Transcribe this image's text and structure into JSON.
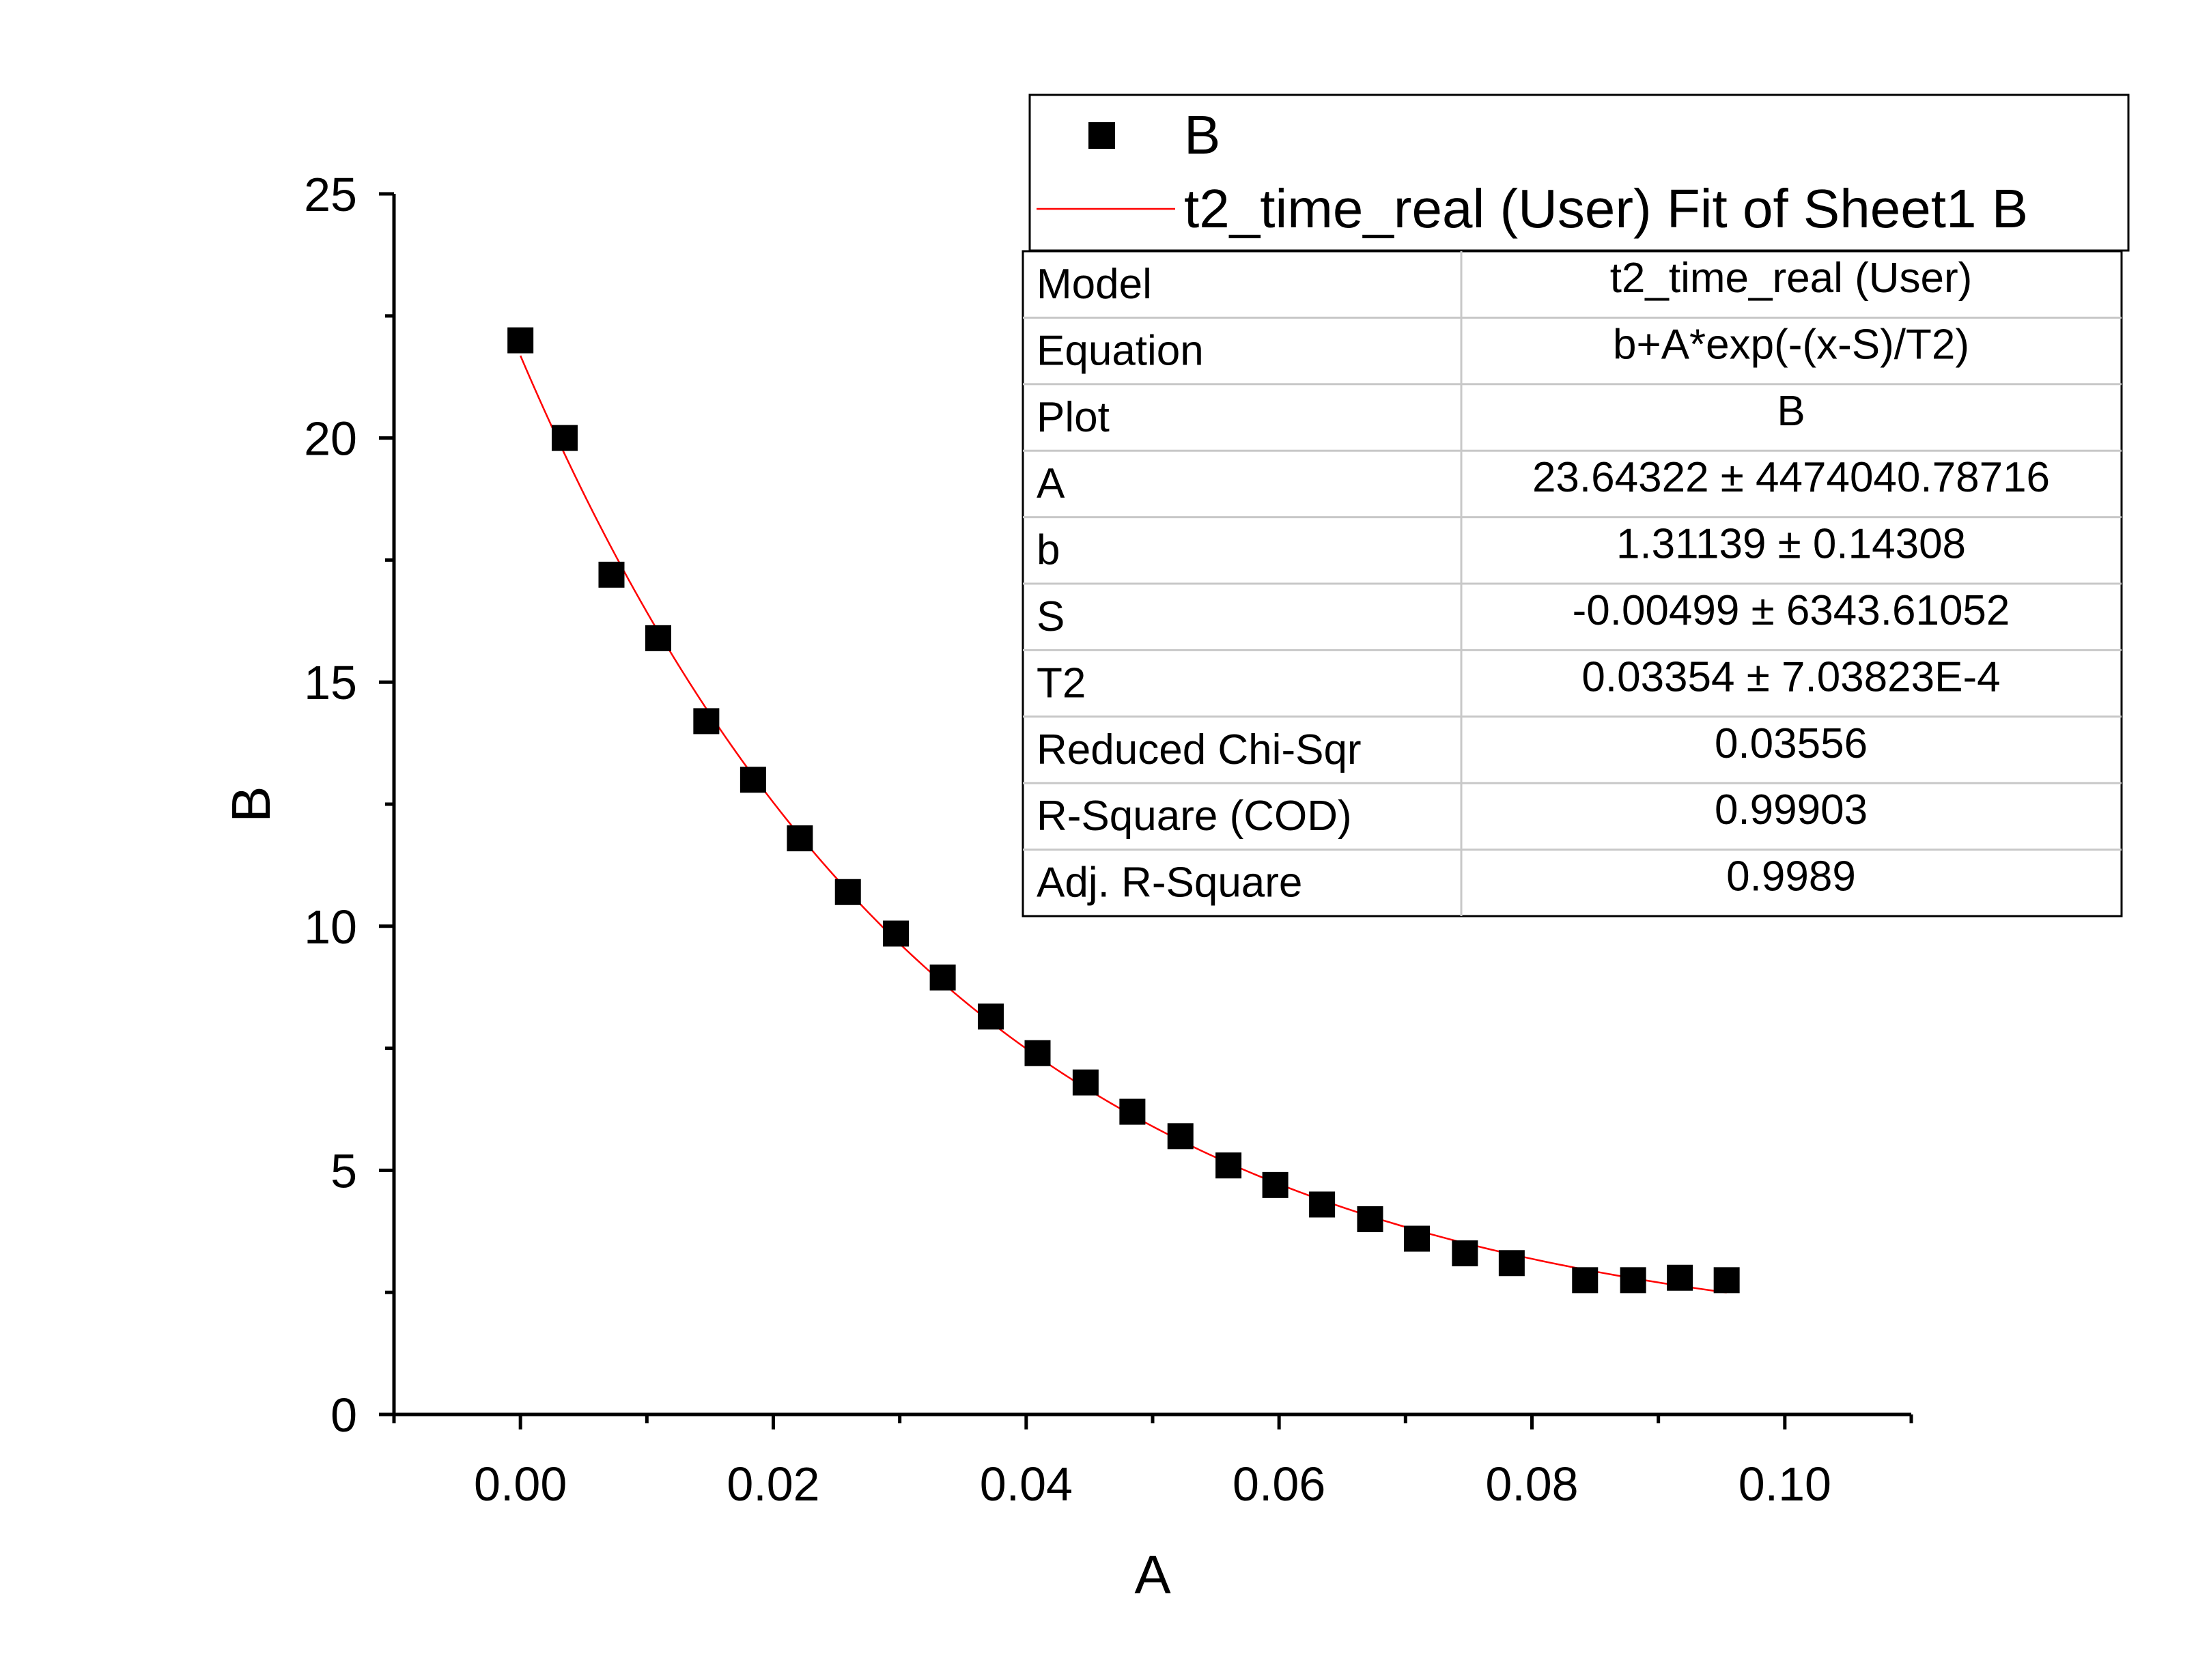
{
  "chart_data": {
    "type": "scatter",
    "xlabel": "A",
    "ylabel": "B",
    "xlim": [
      -0.01,
      0.11
    ],
    "ylim": [
      0,
      25
    ],
    "x_ticks": [
      {
        "value": 0.0,
        "label": "0.00"
      },
      {
        "value": 0.02,
        "label": "0.02"
      },
      {
        "value": 0.04,
        "label": "0.04"
      },
      {
        "value": 0.06,
        "label": "0.06"
      },
      {
        "value": 0.08,
        "label": "0.08"
      },
      {
        "value": 0.1,
        "label": "0.10"
      }
    ],
    "y_ticks": [
      {
        "value": 0,
        "label": "0"
      },
      {
        "value": 5,
        "label": "5"
      },
      {
        "value": 10,
        "label": "10"
      },
      {
        "value": 15,
        "label": "15"
      },
      {
        "value": 20,
        "label": "20"
      },
      {
        "value": 25,
        "label": "25"
      }
    ],
    "grid": false,
    "legend_position": "top-right",
    "series": [
      {
        "name": "B",
        "kind": "scatter",
        "marker": "square",
        "color": "#000000",
        "x": [
          0.0,
          0.0035,
          0.0072,
          0.0109,
          0.0147,
          0.0184,
          0.0221,
          0.0259,
          0.0297,
          0.0334,
          0.0372,
          0.0409,
          0.0447,
          0.0484,
          0.0522,
          0.056,
          0.0597,
          0.0634,
          0.0672,
          0.0709,
          0.0747,
          0.0784,
          0.0842,
          0.088,
          0.0917,
          0.0954
        ],
        "y": [
          22.0,
          20.0,
          17.2,
          15.9,
          14.2,
          13.0,
          11.8,
          10.7,
          9.85,
          8.95,
          8.15,
          7.4,
          6.8,
          6.2,
          5.7,
          5.1,
          4.7,
          4.3,
          4.0,
          3.6,
          3.3,
          3.1,
          2.75,
          2.75,
          2.8,
          2.75
        ]
      },
      {
        "name": "t2_time_real (User) Fit of Sheet1 B",
        "kind": "line",
        "color": "#ff0000",
        "fit": {
          "b": 1.31139,
          "A": 23.64322,
          "S": -0.00499,
          "T2": 0.03354,
          "x_start": 0.0,
          "x_end": 0.0954
        }
      }
    ],
    "fit_table": [
      {
        "label": "Model",
        "value": "t2_time_real (User)"
      },
      {
        "label": "Equation",
        "value": "b+A*exp(-(x-S)/T2)"
      },
      {
        "label": "Plot",
        "value": "B"
      },
      {
        "label": "A",
        "value": "23.64322 ± 4474040.78716"
      },
      {
        "label": "b",
        "value": "1.31139 ± 0.14308"
      },
      {
        "label": "S",
        "value": "-0.00499 ± 6343.61052"
      },
      {
        "label": "T2",
        "value": "0.03354 ± 7.03823E-4"
      },
      {
        "label": "Reduced Chi-Sqr",
        "value": "0.03556"
      },
      {
        "label": "R-Square (COD)",
        "value": "0.99903"
      },
      {
        "label": "Adj. R-Square",
        "value": "0.9989"
      }
    ]
  }
}
